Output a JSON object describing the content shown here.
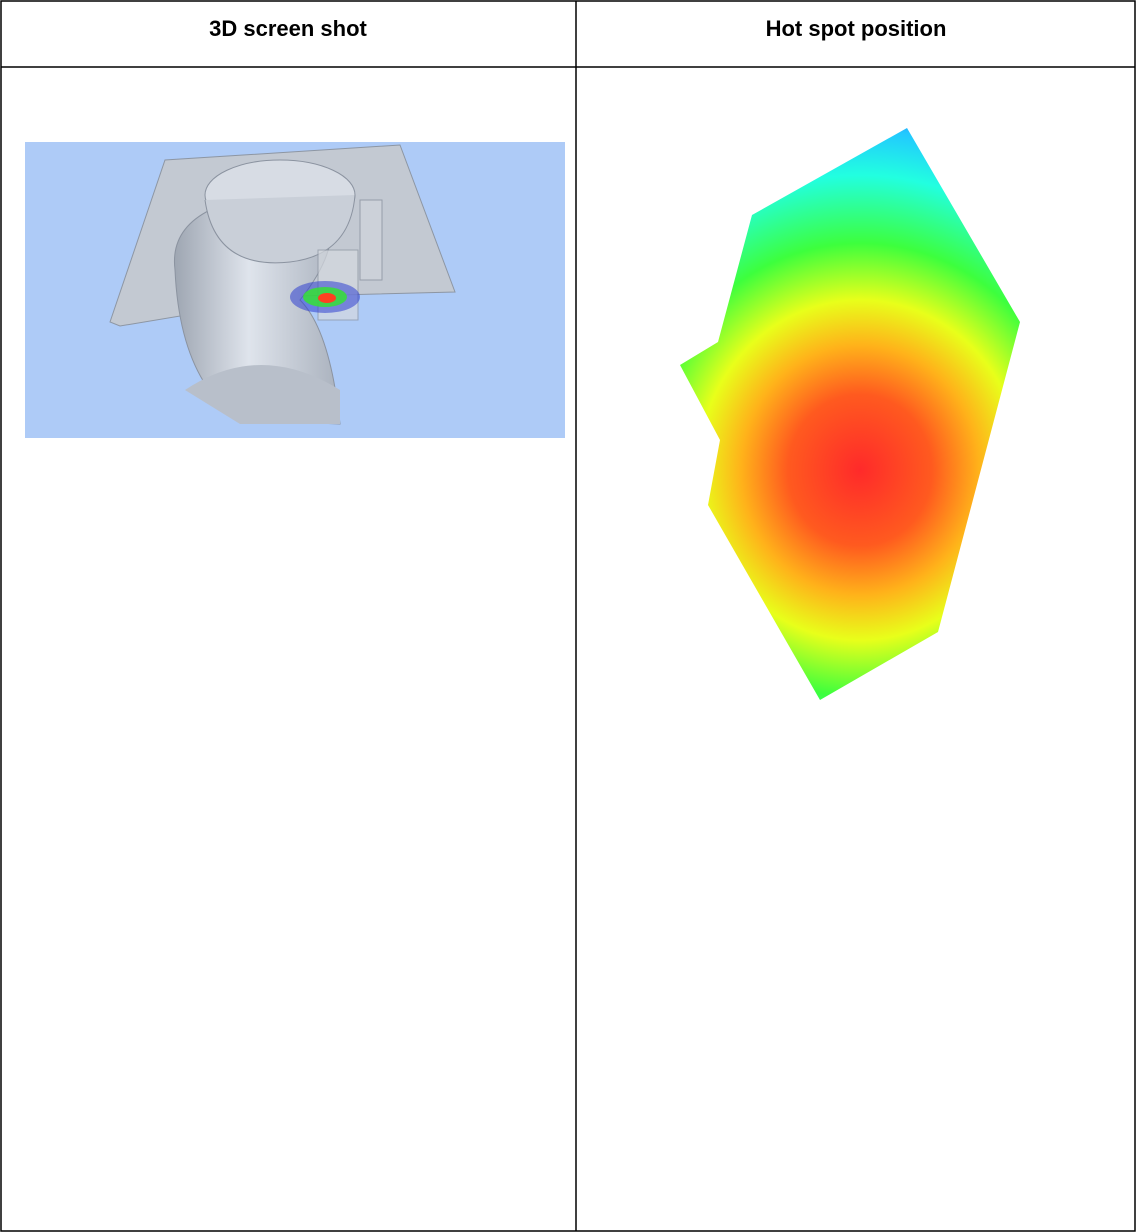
{
  "table": {
    "headers": [
      "3D screen shot",
      "Hot spot position"
    ]
  }
}
